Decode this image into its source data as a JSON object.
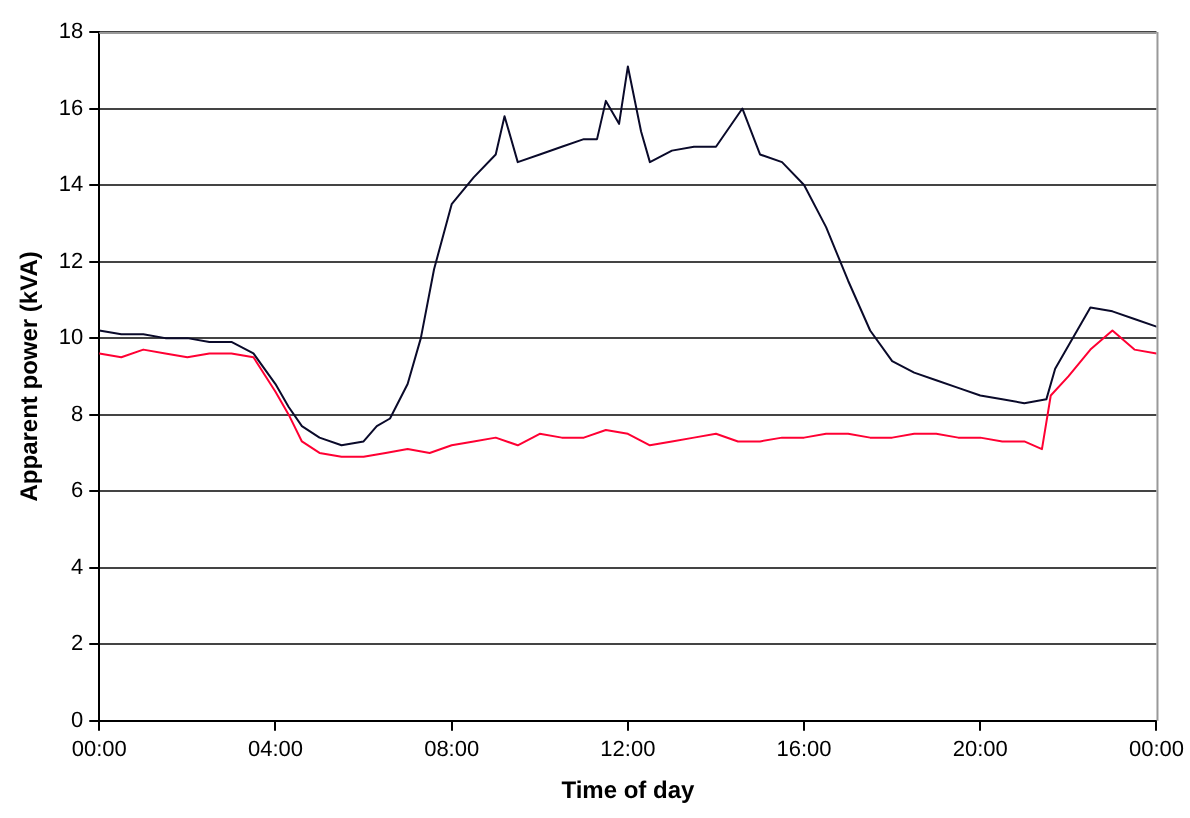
{
  "chart_data": {
    "type": "line",
    "xlabel": "Time of day",
    "ylabel": "Apparent power (kVA)",
    "xlim": [
      0,
      24
    ],
    "xticks": [
      {
        "value": 0,
        "label": "00:00"
      },
      {
        "value": 4,
        "label": "04:00"
      },
      {
        "value": 8,
        "label": "08:00"
      },
      {
        "value": 12,
        "label": "12:00"
      },
      {
        "value": 16,
        "label": "16:00"
      },
      {
        "value": 20,
        "label": "20:00"
      },
      {
        "value": 24,
        "label": "00:00"
      }
    ],
    "ylim": [
      0,
      18
    ],
    "yticks": [
      0,
      2,
      4,
      6,
      8,
      10,
      12,
      14,
      16,
      18
    ],
    "grid": "y",
    "legend": false,
    "marker": "none",
    "line_style": "solid",
    "series": [
      {
        "color": "#0a0a2a",
        "x": [
          0,
          0.5,
          1,
          1.5,
          2,
          2.5,
          3,
          3.5,
          4,
          4.3,
          4.6,
          5,
          5.5,
          6,
          6.3,
          6.6,
          7,
          7.3,
          7.6,
          8,
          8.5,
          9,
          9.2,
          9.5,
          10,
          10.5,
          11,
          11.3,
          11.5,
          11.8,
          12,
          12.3,
          12.5,
          13,
          13.5,
          14,
          14.6,
          15,
          15.5,
          16,
          16.5,
          17,
          17.5,
          18,
          18.5,
          19,
          19.5,
          20,
          20.5,
          21,
          21.5,
          21.7,
          22,
          22.5,
          23,
          23.5,
          24
        ],
        "values": [
          10.2,
          10.1,
          10.1,
          10.0,
          10.0,
          9.9,
          9.9,
          9.6,
          8.8,
          8.2,
          7.7,
          7.4,
          7.2,
          7.3,
          7.7,
          7.9,
          8.8,
          10.0,
          11.8,
          13.5,
          14.2,
          14.8,
          15.8,
          14.6,
          14.8,
          15.0,
          15.2,
          15.2,
          16.2,
          15.6,
          17.1,
          15.4,
          14.6,
          14.9,
          15.0,
          15.0,
          16.0,
          14.8,
          14.6,
          14.0,
          12.9,
          11.5,
          10.2,
          9.4,
          9.1,
          8.9,
          8.7,
          8.5,
          8.4,
          8.3,
          8.4,
          9.2,
          9.8,
          10.8,
          10.7,
          10.5,
          10.3
        ]
      },
      {
        "color": "#ff0033",
        "x": [
          0,
          0.5,
          1,
          1.5,
          2,
          2.5,
          3,
          3.5,
          4,
          4.3,
          4.6,
          5,
          5.5,
          6,
          6.5,
          7,
          7.5,
          8,
          8.5,
          9,
          9.5,
          10,
          10.5,
          11,
          11.5,
          12,
          12.5,
          13,
          13.5,
          14,
          14.5,
          15,
          15.5,
          16,
          16.5,
          17,
          17.5,
          18,
          18.5,
          19,
          19.5,
          20,
          20.5,
          21,
          21.4,
          21.6,
          22,
          22.5,
          23,
          23.5,
          24
        ],
        "values": [
          9.6,
          9.5,
          9.7,
          9.6,
          9.5,
          9.6,
          9.6,
          9.5,
          8.6,
          8.0,
          7.3,
          7.0,
          6.9,
          6.9,
          7.0,
          7.1,
          7.0,
          7.2,
          7.3,
          7.4,
          7.2,
          7.5,
          7.4,
          7.4,
          7.6,
          7.5,
          7.2,
          7.3,
          7.4,
          7.5,
          7.3,
          7.3,
          7.4,
          7.4,
          7.5,
          7.5,
          7.4,
          7.4,
          7.5,
          7.5,
          7.4,
          7.4,
          7.3,
          7.3,
          7.1,
          8.5,
          9.0,
          9.7,
          10.2,
          9.7,
          9.6
        ]
      }
    ]
  }
}
